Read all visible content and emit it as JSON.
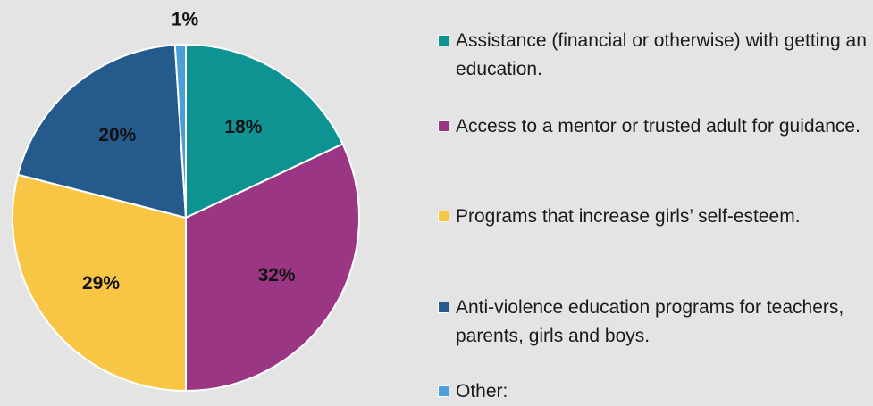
{
  "chart_data": {
    "type": "pie",
    "title": "",
    "start_angle_deg": 0,
    "direction": "clockwise",
    "slices": [
      {
        "label": "Assistance (financial or otherwise) with getting an education.",
        "value": 18,
        "display": "18%",
        "color": "#0e9393"
      },
      {
        "label": "Access to a mentor or trusted adult for guidance.",
        "value": 32,
        "display": "32%",
        "color": "#9b3684"
      },
      {
        "label": "Programs that increase girls’ self-esteem.",
        "value": 29,
        "display": "29%",
        "color": "#f8c545"
      },
      {
        "label": "Anti-violence education programs for teachers, parents, girls and boys.",
        "value": 20,
        "display": "20%",
        "color": "#255a8d"
      },
      {
        "label": "Other:",
        "value": 1,
        "display": "1%",
        "color": "#4a9fd8"
      }
    ],
    "legend_position": "right"
  }
}
